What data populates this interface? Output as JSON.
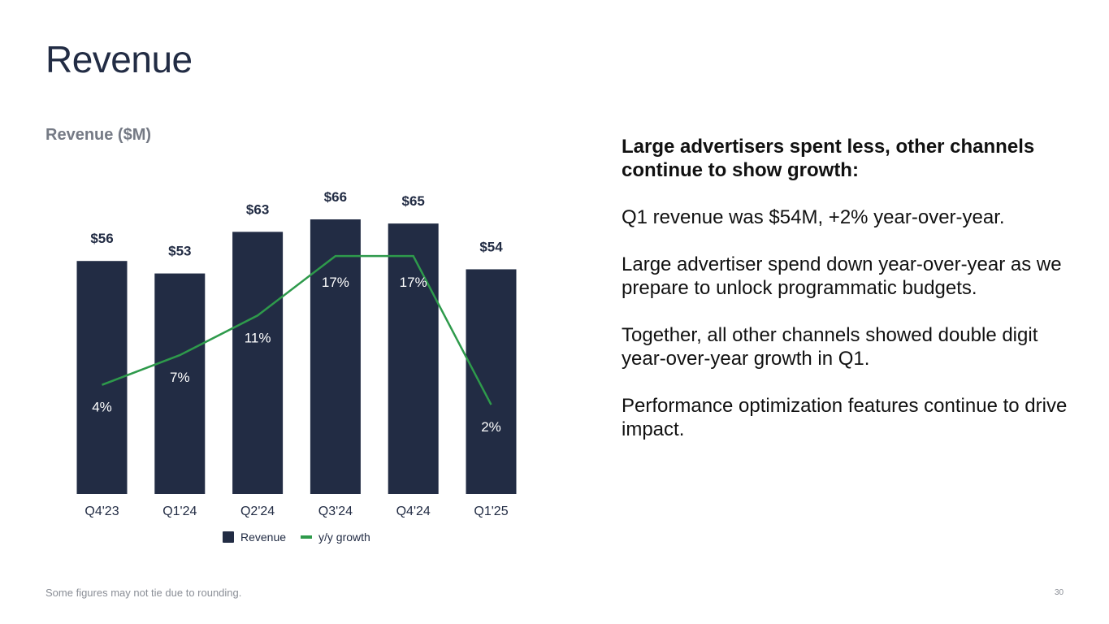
{
  "slide": {
    "title": "Revenue",
    "footnote": "Some figures may not tie due to rounding.",
    "page_number": "30"
  },
  "chart_data": {
    "type": "bar",
    "title": "Revenue ($M)",
    "categories": [
      "Q4'23",
      "Q1'24",
      "Q2'24",
      "Q3'24",
      "Q4'24",
      "Q1'25"
    ],
    "series": [
      {
        "name": "Revenue",
        "type": "bar",
        "values": [
          56,
          53,
          63,
          66,
          65,
          54
        ],
        "labels": [
          "$56",
          "$53",
          "$63",
          "$66",
          "$65",
          "$54"
        ],
        "color": "#222c44"
      },
      {
        "name": "y/y growth",
        "type": "line",
        "values": [
          4,
          7,
          11,
          17,
          17,
          2
        ],
        "labels": [
          "4%",
          "7%",
          "11%",
          "17%",
          "17%",
          "2%"
        ],
        "color": "#2e9a4b"
      }
    ],
    "legend": [
      "Revenue",
      "y/y growth"
    ],
    "legend_position": "bottom",
    "ylim": [
      0,
      66
    ],
    "grid": false
  },
  "commentary": {
    "heading": "Large advertisers spent less, other channels continue to show growth:",
    "paragraphs": [
      "Q1 revenue was $54M, +2% year-over-year.",
      "Large advertiser spend down year-over-year as we prepare to unlock programmatic budgets.",
      "Together, all other channels showed double digit year-over-year growth in Q1.",
      "Performance optimization features continue to drive impact."
    ]
  }
}
